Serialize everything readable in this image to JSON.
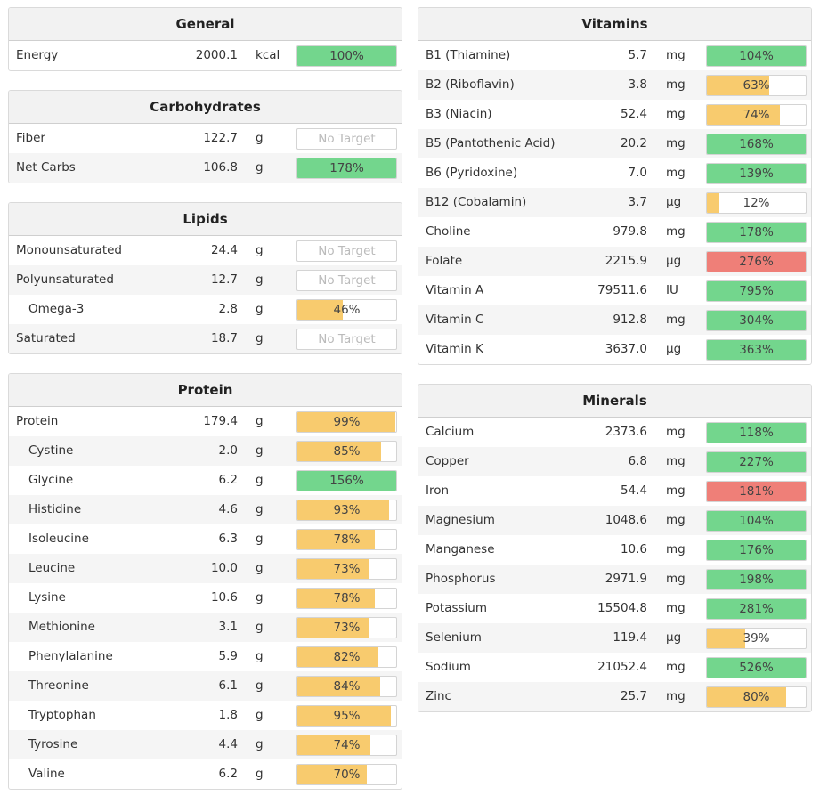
{
  "colors": {
    "green": "#73d68d",
    "yellow": "#f8cb6e",
    "red": "#ef7f78"
  },
  "general": {
    "title": "General",
    "rows": [
      {
        "name": "Energy",
        "amount": "2000.1",
        "unit": "kcal",
        "label": "100%",
        "pct": 100,
        "color": "green"
      }
    ]
  },
  "carbohydrates": {
    "title": "Carbohydrates",
    "rows": [
      {
        "name": "Fiber",
        "amount": "122.7",
        "unit": "g",
        "label": "No Target",
        "pct": 0,
        "color": "none"
      },
      {
        "name": "Net Carbs",
        "amount": "106.8",
        "unit": "g",
        "label": "178%",
        "pct": 178,
        "color": "green"
      }
    ]
  },
  "lipids": {
    "title": "Lipids",
    "rows": [
      {
        "name": "Monounsaturated",
        "amount": "24.4",
        "unit": "g",
        "label": "No Target",
        "pct": 0,
        "color": "none"
      },
      {
        "name": "Polyunsaturated",
        "amount": "12.7",
        "unit": "g",
        "label": "No Target",
        "pct": 0,
        "color": "none"
      },
      {
        "name": "Omega-3",
        "amount": "2.8",
        "unit": "g",
        "label": "46%",
        "pct": 46,
        "color": "yellow",
        "indent": true
      },
      {
        "name": "Saturated",
        "amount": "18.7",
        "unit": "g",
        "label": "No Target",
        "pct": 0,
        "color": "none"
      }
    ]
  },
  "protein": {
    "title": "Protein",
    "rows": [
      {
        "name": "Protein",
        "amount": "179.4",
        "unit": "g",
        "label": "99%",
        "pct": 99,
        "color": "yellow"
      },
      {
        "name": "Cystine",
        "amount": "2.0",
        "unit": "g",
        "label": "85%",
        "pct": 85,
        "color": "yellow",
        "indent": true
      },
      {
        "name": "Glycine",
        "amount": "6.2",
        "unit": "g",
        "label": "156%",
        "pct": 156,
        "color": "green",
        "indent": true
      },
      {
        "name": "Histidine",
        "amount": "4.6",
        "unit": "g",
        "label": "93%",
        "pct": 93,
        "color": "yellow",
        "indent": true
      },
      {
        "name": "Isoleucine",
        "amount": "6.3",
        "unit": "g",
        "label": "78%",
        "pct": 78,
        "color": "yellow",
        "indent": true
      },
      {
        "name": "Leucine",
        "amount": "10.0",
        "unit": "g",
        "label": "73%",
        "pct": 73,
        "color": "yellow",
        "indent": true
      },
      {
        "name": "Lysine",
        "amount": "10.6",
        "unit": "g",
        "label": "78%",
        "pct": 78,
        "color": "yellow",
        "indent": true
      },
      {
        "name": "Methionine",
        "amount": "3.1",
        "unit": "g",
        "label": "73%",
        "pct": 73,
        "color": "yellow",
        "indent": true
      },
      {
        "name": "Phenylalanine",
        "amount": "5.9",
        "unit": "g",
        "label": "82%",
        "pct": 82,
        "color": "yellow",
        "indent": true
      },
      {
        "name": "Threonine",
        "amount": "6.1",
        "unit": "g",
        "label": "84%",
        "pct": 84,
        "color": "yellow",
        "indent": true
      },
      {
        "name": "Tryptophan",
        "amount": "1.8",
        "unit": "g",
        "label": "95%",
        "pct": 95,
        "color": "yellow",
        "indent": true
      },
      {
        "name": "Tyrosine",
        "amount": "4.4",
        "unit": "g",
        "label": "74%",
        "pct": 74,
        "color": "yellow",
        "indent": true
      },
      {
        "name": "Valine",
        "amount": "6.2",
        "unit": "g",
        "label": "70%",
        "pct": 70,
        "color": "yellow",
        "indent": true
      }
    ]
  },
  "vitamins": {
    "title": "Vitamins",
    "rows": [
      {
        "name": "B1 (Thiamine)",
        "amount": "5.7",
        "unit": "mg",
        "label": "104%",
        "pct": 104,
        "color": "green"
      },
      {
        "name": "B2 (Riboflavin)",
        "amount": "3.8",
        "unit": "mg",
        "label": "63%",
        "pct": 63,
        "color": "yellow"
      },
      {
        "name": "B3 (Niacin)",
        "amount": "52.4",
        "unit": "mg",
        "label": "74%",
        "pct": 74,
        "color": "yellow"
      },
      {
        "name": "B5 (Pantothenic Acid)",
        "amount": "20.2",
        "unit": "mg",
        "label": "168%",
        "pct": 168,
        "color": "green"
      },
      {
        "name": "B6 (Pyridoxine)",
        "amount": "7.0",
        "unit": "mg",
        "label": "139%",
        "pct": 139,
        "color": "green"
      },
      {
        "name": "B12 (Cobalamin)",
        "amount": "3.7",
        "unit": "µg",
        "label": "12%",
        "pct": 12,
        "color": "yellow"
      },
      {
        "name": "Choline",
        "amount": "979.8",
        "unit": "mg",
        "label": "178%",
        "pct": 178,
        "color": "green"
      },
      {
        "name": "Folate",
        "amount": "2215.9",
        "unit": "µg",
        "label": "276%",
        "pct": 276,
        "color": "red"
      },
      {
        "name": "Vitamin A",
        "amount": "79511.6",
        "unit": "IU",
        "label": "795%",
        "pct": 795,
        "color": "green"
      },
      {
        "name": "Vitamin C",
        "amount": "912.8",
        "unit": "mg",
        "label": "304%",
        "pct": 304,
        "color": "green"
      },
      {
        "name": "Vitamin K",
        "amount": "3637.0",
        "unit": "µg",
        "label": "363%",
        "pct": 363,
        "color": "green"
      }
    ]
  },
  "minerals": {
    "title": "Minerals",
    "rows": [
      {
        "name": "Calcium",
        "amount": "2373.6",
        "unit": "mg",
        "label": "118%",
        "pct": 118,
        "color": "green"
      },
      {
        "name": "Copper",
        "amount": "6.8",
        "unit": "mg",
        "label": "227%",
        "pct": 227,
        "color": "green"
      },
      {
        "name": "Iron",
        "amount": "54.4",
        "unit": "mg",
        "label": "181%",
        "pct": 181,
        "color": "red"
      },
      {
        "name": "Magnesium",
        "amount": "1048.6",
        "unit": "mg",
        "label": "104%",
        "pct": 104,
        "color": "green"
      },
      {
        "name": "Manganese",
        "amount": "10.6",
        "unit": "mg",
        "label": "176%",
        "pct": 176,
        "color": "green"
      },
      {
        "name": "Phosphorus",
        "amount": "2971.9",
        "unit": "mg",
        "label": "198%",
        "pct": 198,
        "color": "green"
      },
      {
        "name": "Potassium",
        "amount": "15504.8",
        "unit": "mg",
        "label": "281%",
        "pct": 281,
        "color": "green"
      },
      {
        "name": "Selenium",
        "amount": "119.4",
        "unit": "µg",
        "label": "39%",
        "pct": 39,
        "color": "yellow"
      },
      {
        "name": "Sodium",
        "amount": "21052.4",
        "unit": "mg",
        "label": "526%",
        "pct": 526,
        "color": "green"
      },
      {
        "name": "Zinc",
        "amount": "25.7",
        "unit": "mg",
        "label": "80%",
        "pct": 80,
        "color": "yellow"
      }
    ]
  }
}
